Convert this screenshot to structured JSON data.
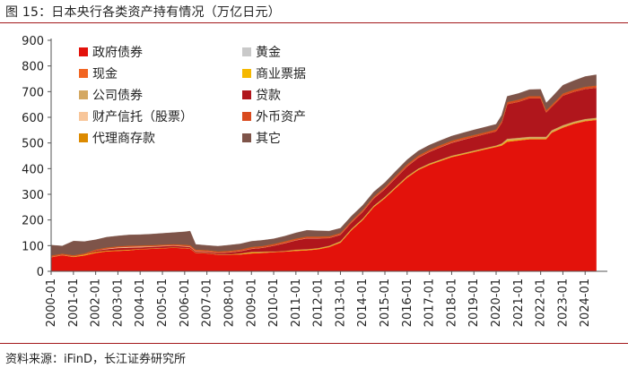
{
  "title": "图 15：日本央行各类资产持有情况（万亿日元）",
  "source": "资料来源：iFinD，长江证券研究所",
  "chart_data": {
    "type": "area",
    "stacked": true,
    "xlabel": "",
    "ylabel": "",
    "ylim": [
      0,
      900
    ],
    "y_ticks": [
      "0",
      "100",
      "200",
      "300",
      "400",
      "500",
      "600",
      "700",
      "800",
      "900"
    ],
    "x_ticks": [
      "2000-01",
      "2001-01",
      "2002-01",
      "2003-01",
      "2004-01",
      "2005-01",
      "2006-01",
      "2007-01",
      "2008-01",
      "2009-01",
      "2010-01",
      "2011-01",
      "2012-01",
      "2013-01",
      "2014-01",
      "2015-01",
      "2016-01",
      "2017-01",
      "2018-01",
      "2019-01",
      "2020-01",
      "2021-01",
      "2022-01",
      "2023-01",
      "2024-01"
    ],
    "x": [
      "2000-01",
      "2000-07",
      "2001-01",
      "2001-07",
      "2002-01",
      "2002-07",
      "2003-01",
      "2003-07",
      "2004-01",
      "2004-07",
      "2005-01",
      "2005-07",
      "2006-01",
      "2006-04",
      "2006-07",
      "2007-01",
      "2007-07",
      "2008-01",
      "2008-07",
      "2009-01",
      "2009-07",
      "2010-01",
      "2010-07",
      "2011-01",
      "2011-07",
      "2012-01",
      "2012-07",
      "2013-01",
      "2013-07",
      "2014-01",
      "2014-07",
      "2015-01",
      "2015-07",
      "2016-01",
      "2016-07",
      "2017-01",
      "2017-07",
      "2018-01",
      "2018-07",
      "2019-01",
      "2019-07",
      "2020-01",
      "2020-04",
      "2020-07",
      "2021-01",
      "2021-07",
      "2022-01",
      "2022-04",
      "2022-07",
      "2023-01",
      "2023-07",
      "2024-01",
      "2024-07"
    ],
    "series": [
      {
        "name": "政府债券",
        "color": "#e3120b",
        "values": [
          55,
          63,
          56,
          62,
          72,
          78,
          80,
          82,
          86,
          88,
          90,
          92,
          90,
          88,
          72,
          70,
          65,
          65,
          66,
          70,
          72,
          75,
          77,
          80,
          82,
          86,
          95,
          112,
          160,
          200,
          250,
          285,
          325,
          365,
          395,
          415,
          430,
          445,
          455,
          465,
          475,
          485,
          490,
          505,
          510,
          515,
          515,
          515,
          540,
          560,
          575,
          585,
          590
        ]
      },
      {
        "name": "黄金",
        "color": "#c9c9c9",
        "values": [
          0.4,
          0.4,
          0.4,
          0.4,
          0.4,
          0.4,
          0.4,
          0.4,
          0.4,
          0.4,
          0.4,
          0.4,
          0.4,
          0.4,
          0.4,
          0.4,
          0.4,
          0.4,
          0.4,
          0.4,
          0.4,
          0.4,
          0.4,
          0.4,
          0.4,
          0.4,
          0.4,
          0.4,
          0.4,
          0.4,
          0.4,
          0.4,
          0.4,
          0.4,
          0.4,
          0.4,
          0.4,
          0.4,
          0.4,
          0.4,
          0.4,
          0.4,
          0.4,
          0.4,
          0.4,
          0.4,
          0.4,
          0.4,
          0.4,
          0.4,
          0.4,
          0.4,
          0.4
        ]
      },
      {
        "name": "现金",
        "color": "#f26522",
        "values": [
          0.2,
          0.2,
          0.2,
          0.2,
          0.2,
          0.2,
          0.2,
          0.2,
          0.2,
          0.2,
          0.2,
          0.2,
          0.2,
          0.2,
          0.2,
          0.2,
          0.2,
          0.2,
          0.2,
          0.2,
          0.2,
          0.2,
          0.2,
          0.2,
          0.2,
          0.2,
          0.2,
          0.2,
          0.2,
          0.2,
          0.2,
          0.2,
          0.2,
          0.2,
          0.2,
          0.2,
          0.2,
          0.2,
          0.2,
          0.2,
          0.2,
          0.2,
          0.2,
          0.2,
          0.2,
          0.2,
          0.2,
          0.2,
          0.2,
          0.2,
          0.2,
          0.2,
          0.2
        ]
      },
      {
        "name": "商业票据",
        "color": "#f5b800",
        "values": [
          1,
          1,
          2,
          3,
          3,
          2,
          2,
          2,
          1,
          1,
          1,
          1,
          1,
          1,
          1,
          1,
          1,
          1,
          2,
          3,
          2,
          1,
          1,
          2,
          2,
          2,
          2,
          2,
          2,
          2,
          2,
          2,
          2,
          2,
          2,
          2,
          2,
          2,
          2,
          2,
          2,
          2,
          3,
          4,
          3,
          2,
          2,
          2,
          2,
          2,
          2,
          2,
          2
        ]
      },
      {
        "name": "公司债券",
        "color": "#d4a862",
        "values": [
          0,
          0,
          0,
          0,
          0,
          0,
          0,
          0,
          0,
          0,
          0,
          0,
          0,
          0,
          0,
          0,
          0,
          0,
          1,
          2,
          2,
          1,
          1,
          2,
          2,
          2,
          2,
          3,
          3,
          3,
          3,
          3,
          3,
          3,
          3,
          3,
          3,
          3,
          3,
          3,
          3,
          3,
          5,
          7,
          7,
          7,
          7,
          7,
          7,
          7,
          6,
          6,
          6
        ]
      },
      {
        "name": "贷款",
        "color": "#b0161c",
        "values": [
          0,
          0,
          0,
          0,
          5,
          6,
          8,
          8,
          6,
          6,
          6,
          6,
          5,
          5,
          4,
          4,
          5,
          7,
          9,
          12,
          15,
          22,
          30,
          36,
          42,
          38,
          30,
          25,
          24,
          26,
          28,
          30,
          34,
          38,
          42,
          45,
          48,
          50,
          52,
          53,
          54,
          55,
          80,
          135,
          140,
          150,
          150,
          95,
          90,
          115,
          116,
          117,
          117
        ]
      },
      {
        "name": "财产信托（股票）",
        "color": "#f8c69a",
        "values": [
          0,
          0,
          0,
          0,
          0,
          2,
          3,
          3,
          3,
          2,
          2,
          2,
          2,
          2,
          2,
          2,
          1,
          1,
          1,
          1,
          1,
          1,
          1,
          1,
          1,
          1,
          1,
          1,
          1,
          1,
          1,
          1,
          1,
          1,
          1,
          1,
          1,
          1,
          1,
          0,
          0,
          0,
          0,
          0,
          0,
          0,
          0,
          0,
          0,
          0,
          0,
          0,
          0
        ]
      },
      {
        "name": "外币资产",
        "color": "#d94a1e",
        "values": [
          5,
          4,
          4,
          4,
          4,
          4,
          4,
          4,
          4,
          4,
          4,
          4,
          5,
          5,
          5,
          5,
          5,
          5,
          5,
          6,
          6,
          6,
          6,
          6,
          6,
          6,
          6,
          6,
          6,
          6,
          6,
          6,
          7,
          7,
          7,
          7,
          7,
          7,
          7,
          7,
          7,
          7,
          7,
          8,
          8,
          8,
          8,
          8,
          8,
          8,
          8,
          8,
          8
        ]
      },
      {
        "name": "代理商存款",
        "color": "#dc8a00",
        "values": [
          0.2,
          0.2,
          0.2,
          0.2,
          0.2,
          0.2,
          0.2,
          0.2,
          0.2,
          0.2,
          0.2,
          0.2,
          0.2,
          0.2,
          0.2,
          0.2,
          0.2,
          0.2,
          0.2,
          0.2,
          0.2,
          0.2,
          0.2,
          0.2,
          0.2,
          0.2,
          0.2,
          0.2,
          0.2,
          0.2,
          0.2,
          0.2,
          0.2,
          0.2,
          0.2,
          0.2,
          0.2,
          0.2,
          0.2,
          0.2,
          0.2,
          0.2,
          0.2,
          0.2,
          0.2,
          0.2,
          0.2,
          0.2,
          0.2,
          0.2,
          0.2,
          0.2,
          0.2
        ]
      },
      {
        "name": "其它",
        "color": "#7e5449",
        "values": [
          40,
          30,
          55,
          46,
          38,
          40,
          40,
          42,
          42,
          43,
          44,
          45,
          50,
          55,
          20,
          18,
          20,
          22,
          22,
          22,
          22,
          20,
          20,
          22,
          24,
          22,
          20,
          18,
          18,
          18,
          18,
          18,
          18,
          18,
          18,
          18,
          18,
          18,
          18,
          20,
          20,
          20,
          22,
          22,
          24,
          25,
          26,
          28,
          30,
          32,
          35,
          40,
          42
        ]
      }
    ],
    "legend_placement": "top-left",
    "grid": false
  }
}
